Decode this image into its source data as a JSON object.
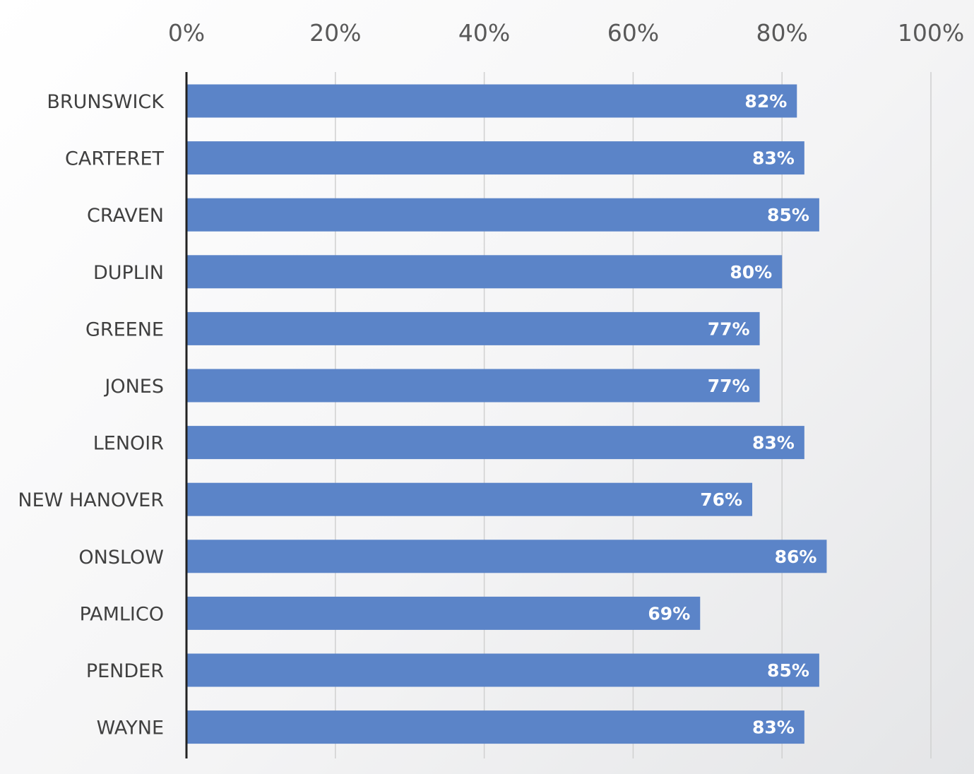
{
  "chart_data": {
    "type": "bar",
    "orientation": "horizontal",
    "title": "",
    "xlabel": "",
    "ylabel": "",
    "categories": [
      "BRUNSWICK",
      "CARTERET",
      "CRAVEN",
      "DUPLIN",
      "GREENE",
      "JONES",
      "LENOIR",
      "NEW HANOVER",
      "ONSLOW",
      "PAMLICO",
      "PENDER",
      "WAYNE"
    ],
    "values": [
      82,
      83,
      85,
      80,
      77,
      77,
      83,
      76,
      86,
      69,
      85,
      83
    ],
    "data_labels": [
      "82%",
      "83%",
      "85%",
      "80%",
      "77%",
      "77%",
      "83%",
      "76%",
      "86%",
      "69%",
      "85%",
      "83%"
    ],
    "xlim": [
      0,
      100
    ],
    "x_ticks": [
      0,
      20,
      40,
      60,
      80,
      100
    ],
    "x_tick_labels": [
      "0%",
      "20%",
      "40%",
      "60%",
      "80%",
      "100%"
    ],
    "x_axis_position": "top",
    "grid": true,
    "legend": "none",
    "bar_color": "#5b84c8",
    "gridline_color": "#d0d0d0",
    "axis_color": "#222222"
  }
}
